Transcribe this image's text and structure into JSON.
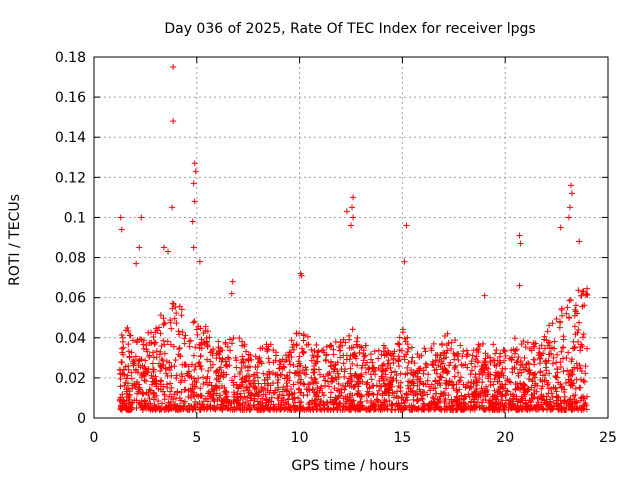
{
  "chart_data": {
    "type": "scatter",
    "title": "Day 036 of 2025, Rate Of TEC Index for receiver lpgs",
    "xlabel": "GPS time / hours",
    "ylabel": "ROTI / TECUs",
    "xlim": [
      0,
      25
    ],
    "ylim": [
      0,
      0.18
    ],
    "x_ticks": [
      "0",
      "5",
      "10",
      "15",
      "20",
      "25"
    ],
    "y_ticks": [
      "0",
      "0.02",
      "0.04",
      "0.06",
      "0.08",
      "0.1",
      "0.12",
      "0.14",
      "0.16",
      "0.18"
    ],
    "grid": true,
    "legend": "none",
    "marker": "+",
    "color": "#ff0000",
    "x_range_of_data": [
      1.25,
      24.0
    ],
    "notable_points": [
      {
        "x": 1.3,
        "y": 0.1
      },
      {
        "x": 1.35,
        "y": 0.094
      },
      {
        "x": 2.3,
        "y": 0.1
      },
      {
        "x": 3.85,
        "y": 0.175
      },
      {
        "x": 3.85,
        "y": 0.148
      },
      {
        "x": 3.8,
        "y": 0.105
      },
      {
        "x": 4.9,
        "y": 0.127
      },
      {
        "x": 4.95,
        "y": 0.123
      },
      {
        "x": 4.85,
        "y": 0.117
      },
      {
        "x": 4.9,
        "y": 0.108
      },
      {
        "x": 4.8,
        "y": 0.098
      },
      {
        "x": 4.85,
        "y": 0.085
      },
      {
        "x": 12.6,
        "y": 0.11
      },
      {
        "x": 12.55,
        "y": 0.105
      },
      {
        "x": 12.3,
        "y": 0.103
      },
      {
        "x": 12.6,
        "y": 0.1
      },
      {
        "x": 12.5,
        "y": 0.096
      },
      {
        "x": 15.2,
        "y": 0.096
      },
      {
        "x": 15.1,
        "y": 0.078
      },
      {
        "x": 20.7,
        "y": 0.091
      },
      {
        "x": 20.75,
        "y": 0.087
      },
      {
        "x": 20.7,
        "y": 0.066
      },
      {
        "x": 23.2,
        "y": 0.116
      },
      {
        "x": 23.25,
        "y": 0.112
      },
      {
        "x": 23.15,
        "y": 0.105
      },
      {
        "x": 23.1,
        "y": 0.1
      },
      {
        "x": 22.7,
        "y": 0.095
      },
      {
        "x": 23.6,
        "y": 0.088
      },
      {
        "x": 10.05,
        "y": 0.072
      },
      {
        "x": 10.1,
        "y": 0.071
      },
      {
        "x": 6.75,
        "y": 0.068
      },
      {
        "x": 6.7,
        "y": 0.062
      },
      {
        "x": 3.4,
        "y": 0.085
      },
      {
        "x": 3.6,
        "y": 0.083
      },
      {
        "x": 2.2,
        "y": 0.085
      },
      {
        "x": 2.05,
        "y": 0.077
      },
      {
        "x": 5.15,
        "y": 0.078
      },
      {
        "x": 19.0,
        "y": 0.061
      }
    ],
    "activity_profile": {
      "hours": [
        1.25,
        1.5,
        2,
        2.5,
        3,
        3.5,
        4,
        4.5,
        5,
        5.5,
        6,
        6.5,
        7,
        7.5,
        8,
        8.5,
        9,
        9.5,
        10,
        10.5,
        11,
        11.5,
        12,
        12.5,
        13,
        13.5,
        14,
        14.5,
        15,
        15.5,
        16,
        16.5,
        17,
        17.5,
        18,
        18.5,
        19,
        19.5,
        20,
        20.5,
        21,
        21.5,
        22,
        22.5,
        23,
        23.5,
        24
      ],
      "typical_max_roti": [
        0.04,
        0.045,
        0.045,
        0.04,
        0.05,
        0.055,
        0.06,
        0.05,
        0.05,
        0.045,
        0.04,
        0.038,
        0.045,
        0.035,
        0.035,
        0.04,
        0.035,
        0.038,
        0.045,
        0.04,
        0.035,
        0.04,
        0.04,
        0.045,
        0.04,
        0.035,
        0.038,
        0.035,
        0.045,
        0.035,
        0.035,
        0.04,
        0.045,
        0.04,
        0.035,
        0.035,
        0.04,
        0.038,
        0.04,
        0.04,
        0.038,
        0.04,
        0.045,
        0.05,
        0.06,
        0.065,
        0.065
      ],
      "baseline_min_roti": 0.004,
      "typical_median_roti": 0.018
    }
  }
}
